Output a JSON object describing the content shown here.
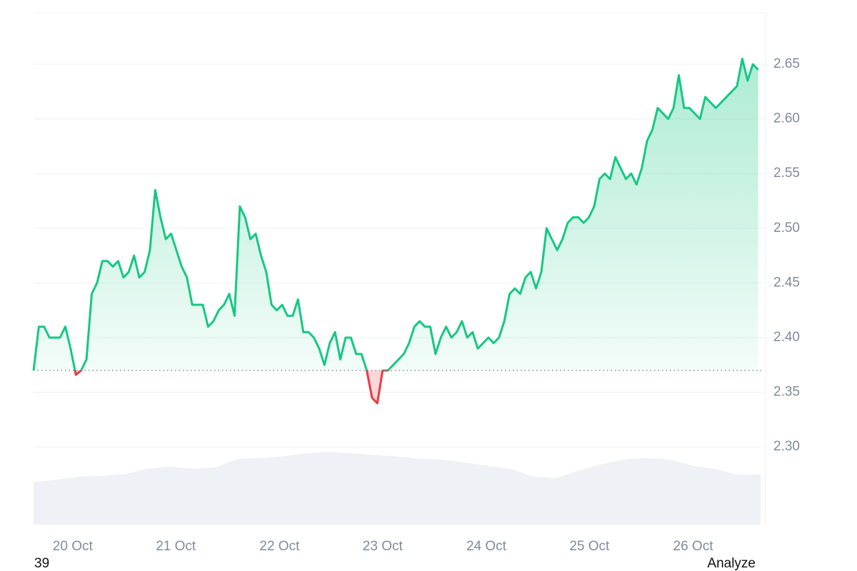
{
  "chart_data": {
    "type": "line",
    "series": [
      {
        "color": "#16c784",
        "down_color": "#ea3943",
        "values": [
          2.37,
          2.41,
          2.41,
          2.4,
          2.4,
          2.4,
          2.41,
          2.39,
          2.366,
          2.37,
          2.38,
          2.44,
          2.45,
          2.47,
          2.47,
          2.465,
          2.47,
          2.455,
          2.46,
          2.475,
          2.455,
          2.46,
          2.48,
          2.535,
          2.51,
          2.49,
          2.495,
          2.48,
          2.465,
          2.455,
          2.43,
          2.43,
          2.43,
          2.41,
          2.415,
          2.425,
          2.43,
          2.44,
          2.42,
          2.52,
          2.51,
          2.49,
          2.495,
          2.475,
          2.46,
          2.43,
          2.425,
          2.43,
          2.42,
          2.42,
          2.435,
          2.405,
          2.405,
          2.4,
          2.39,
          2.375,
          2.395,
          2.405,
          2.38,
          2.4,
          2.4,
          2.385,
          2.385,
          2.37,
          2.345,
          2.34,
          2.37,
          2.37,
          2.375,
          2.38,
          2.385,
          2.395,
          2.41,
          2.415,
          2.41,
          2.41,
          2.385,
          2.4,
          2.41,
          2.4,
          2.405,
          2.415,
          2.4,
          2.405,
          2.39,
          2.395,
          2.4,
          2.395,
          2.4,
          2.415,
          2.44,
          2.445,
          2.44,
          2.455,
          2.46,
          2.445,
          2.46,
          2.5,
          2.49,
          2.48,
          2.49,
          2.505,
          2.51,
          2.51,
          2.505,
          2.51,
          2.52,
          2.545,
          2.55,
          2.545,
          2.565,
          2.555,
          2.545,
          2.55,
          2.54,
          2.555,
          2.58,
          2.59,
          2.61,
          2.605,
          2.6,
          2.61,
          2.64,
          2.61,
          2.61,
          2.605,
          2.6,
          2.62,
          2.615,
          2.61,
          2.615,
          2.62,
          2.625,
          2.63,
          2.655,
          2.635,
          2.65,
          2.645
        ]
      }
    ],
    "baseline": 2.37,
    "volume": {
      "color": "#eef1f5",
      "values": [
        55,
        58,
        62,
        63,
        65,
        72,
        75,
        72,
        74,
        85,
        86,
        88,
        92,
        94,
        92,
        90,
        88,
        85,
        84,
        80,
        76,
        72,
        62,
        60,
        70,
        78,
        84,
        86,
        84,
        76,
        72,
        64,
        65
      ]
    },
    "xlim": [
      0,
      138
    ],
    "xticks": [
      {
        "value": 7.4,
        "label": "20 Oct"
      },
      {
        "value": 26.9,
        "label": "21 Oct"
      },
      {
        "value": 46.5,
        "label": "22 Oct"
      },
      {
        "value": 66.0,
        "label": "23 Oct"
      },
      {
        "value": 85.6,
        "label": "24 Oct"
      },
      {
        "value": 105.1,
        "label": "25 Oct"
      },
      {
        "value": 124.7,
        "label": "26 Oct"
      }
    ],
    "ylim": [
      2.229,
      2.697
    ],
    "yticks": [
      {
        "value": 2.3,
        "label": "2.30"
      },
      2.35,
      {
        "value": 2.4,
        "label": "2.40"
      },
      2.45,
      {
        "value": 2.5,
        "label": "2.50"
      },
      2.55,
      {
        "value": 2.6,
        "label": "2.60"
      },
      2.65
    ],
    "grid": true
  },
  "footer": {
    "left": "39",
    "right": "Analyze"
  }
}
